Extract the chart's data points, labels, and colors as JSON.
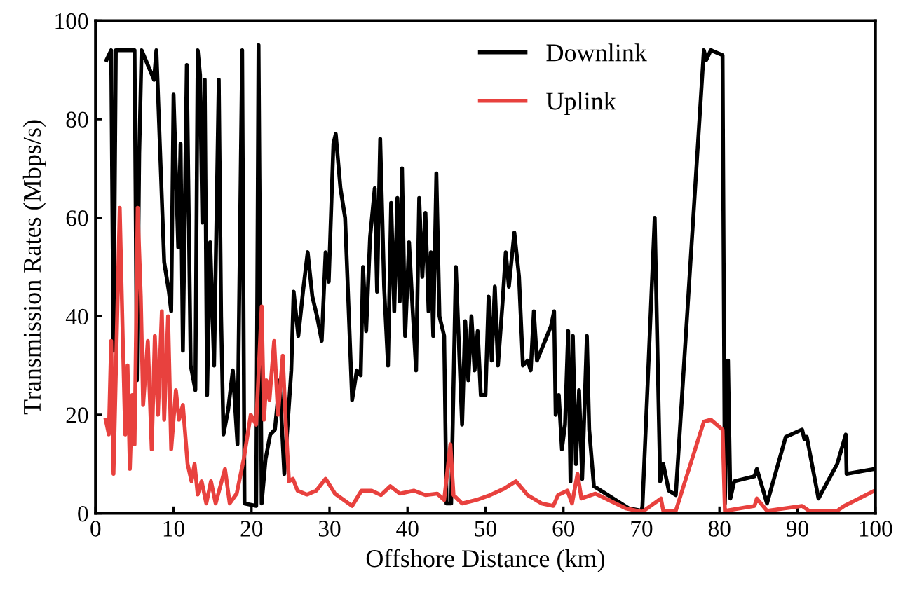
{
  "chart_data": {
    "type": "line",
    "xlabel": "Offshore Distance (km)",
    "ylabel": "Transmission Rates (Mbps/s)",
    "xlim": [
      0,
      100
    ],
    "ylim": [
      0,
      100
    ],
    "xticks": [
      0,
      10,
      20,
      30,
      40,
      50,
      60,
      70,
      80,
      90,
      100
    ],
    "yticks": [
      0,
      20,
      40,
      60,
      80,
      100
    ],
    "grid": false,
    "legend": "top",
    "marker": "none",
    "line_style": "solid",
    "series": [
      {
        "name": "Downlink",
        "color": "#000000",
        "x": [
          1.4,
          2.0,
          2.3,
          2.6,
          5.0,
          5.3,
          5.6,
          5.9,
          7.5,
          7.8,
          8.8,
          9.4,
          9.7,
          10.0,
          10.6,
          10.9,
          11.2,
          11.7,
          12.2,
          12.8,
          13.1,
          13.4,
          13.7,
          14.0,
          14.3,
          14.7,
          15.2,
          15.8,
          16.1,
          16.4,
          17.0,
          17.6,
          18.2,
          18.8,
          19.1,
          20.6,
          20.9,
          21.3,
          21.8,
          22.4,
          23.0,
          23.6,
          24.2,
          25.1,
          25.4,
          26.0,
          26.6,
          27.2,
          27.8,
          28.4,
          29.0,
          29.5,
          29.9,
          30.5,
          30.8,
          31.4,
          32.0,
          32.9,
          33.5,
          34.0,
          34.3,
          34.7,
          35.2,
          35.8,
          36.1,
          36.5,
          37.0,
          37.5,
          37.9,
          38.3,
          38.7,
          39.0,
          39.3,
          39.7,
          40.2,
          40.6,
          41.1,
          41.5,
          41.9,
          42.3,
          42.7,
          43.0,
          43.3,
          43.7,
          44.1,
          44.7,
          45.0,
          45.6,
          46.2,
          47.0,
          47.4,
          47.8,
          48.2,
          48.6,
          49.0,
          49.4,
          50.0,
          50.4,
          50.8,
          51.2,
          51.6,
          52.2,
          52.6,
          53.0,
          53.7,
          54.3,
          54.8,
          55.4,
          55.8,
          56.2,
          56.6,
          58.4,
          58.8,
          59.0,
          59.4,
          59.8,
          60.2,
          60.6,
          60.9,
          61.2,
          61.6,
          62.0,
          62.4,
          63.0,
          63.3,
          63.9,
          68.4,
          70.1,
          71.7,
          72.4,
          72.8,
          73.5,
          74.4,
          78.0,
          78.3,
          78.9,
          80.4,
          80.7,
          81.1,
          81.4,
          81.9,
          84.5,
          84.8,
          86.1,
          88.5,
          90.6,
          90.9,
          91.2,
          92.7,
          95.1,
          96.2,
          96.3,
          99.9
        ],
        "values": [
          92,
          94,
          33,
          94,
          94,
          27,
          73,
          94,
          88,
          94,
          51,
          45,
          41,
          85,
          54,
          75,
          33,
          91,
          30,
          25,
          94,
          89,
          59,
          88,
          24,
          55,
          30,
          88,
          40,
          16,
          21,
          29,
          14,
          94,
          2,
          1.5,
          95,
          2,
          11,
          16,
          17,
          27,
          8,
          29,
          45,
          36,
          45,
          53,
          44,
          40,
          35,
          53,
          47,
          75,
          77,
          66,
          60,
          23,
          29,
          28,
          50,
          37,
          56,
          66,
          45,
          76,
          46,
          30,
          63,
          41,
          64,
          43,
          70,
          36,
          55,
          43,
          29,
          64,
          48,
          61,
          41,
          53,
          36,
          69,
          40,
          36,
          2,
          2,
          50,
          18,
          39,
          27,
          40,
          29,
          37,
          24,
          24,
          44,
          31,
          46,
          30,
          43,
          53,
          46,
          57,
          48,
          30,
          31,
          29,
          41,
          31,
          38,
          41,
          20,
          24,
          13,
          18,
          37,
          6.5,
          36,
          10,
          25,
          7,
          36,
          17,
          5.5,
          1,
          0.5,
          60,
          6.5,
          10,
          4.6,
          3.7,
          94,
          92,
          94,
          93,
          2,
          31,
          3,
          6.5,
          7.5,
          9,
          2,
          15.5,
          17,
          15,
          15.5,
          3,
          10,
          16,
          8,
          9
        ]
      },
      {
        "name": "Uplink",
        "color": "#e8413e",
        "x": [
          1.3,
          1.7,
          2.0,
          2.3,
          3.1,
          3.5,
          3.8,
          4.1,
          4.4,
          4.7,
          5.0,
          5.4,
          5.8,
          6.1,
          6.7,
          7.2,
          7.6,
          8.0,
          8.5,
          8.8,
          9.3,
          9.7,
          10.3,
          10.7,
          11.2,
          11.8,
          12.3,
          12.7,
          13.1,
          13.6,
          14.2,
          14.8,
          15.4,
          16.0,
          16.6,
          17.2,
          18.1,
          19.0,
          19.9,
          20.6,
          21.3,
          21.6,
          21.9,
          22.3,
          22.9,
          23.4,
          24.0,
          24.4,
          24.8,
          25.3,
          25.9,
          27.1,
          28.3,
          29.5,
          30.7,
          32.9,
          34.1,
          35.4,
          36.6,
          37.8,
          39.0,
          40.8,
          42.3,
          43.8,
          44.7,
          45.5,
          45.9,
          47.0,
          48.8,
          50.6,
          52.4,
          53.9,
          55.4,
          57.2,
          58.7,
          59.3,
          60.5,
          61.1,
          61.8,
          62.3,
          64.1,
          68.0,
          70.1,
          72.5,
          72.8,
          74.4,
          78.0,
          78.9,
          80.4,
          80.7,
          84.5,
          84.8,
          86.1,
          90.6,
          91.5,
          95.1,
          96.0,
          99.9
        ],
        "values": [
          19,
          16,
          35,
          8,
          62,
          35,
          16,
          30,
          9,
          24,
          14,
          62,
          44,
          22,
          35,
          13,
          36,
          20,
          41,
          19,
          40,
          13,
          25,
          19,
          22,
          10,
          6.5,
          10,
          3.8,
          6.5,
          2,
          6.5,
          2,
          5.5,
          9,
          2,
          4,
          11,
          20,
          18,
          42,
          19,
          27,
          23,
          35,
          20,
          32,
          18,
          6.5,
          7,
          4.6,
          3.8,
          4.6,
          7,
          4,
          1.5,
          4.6,
          4.6,
          3.7,
          5.5,
          4,
          4.6,
          3.7,
          4,
          2.7,
          14,
          3.7,
          2,
          2.7,
          3.7,
          5,
          6.5,
          3.7,
          2,
          1.5,
          3.7,
          4.6,
          2,
          8,
          3,
          4,
          1,
          0.3,
          3,
          0.5,
          0.5,
          18.6,
          19,
          17,
          0.5,
          1.5,
          3,
          0.5,
          1.5,
          0.5,
          0.5,
          1.5,
          4.6
        ]
      }
    ]
  }
}
